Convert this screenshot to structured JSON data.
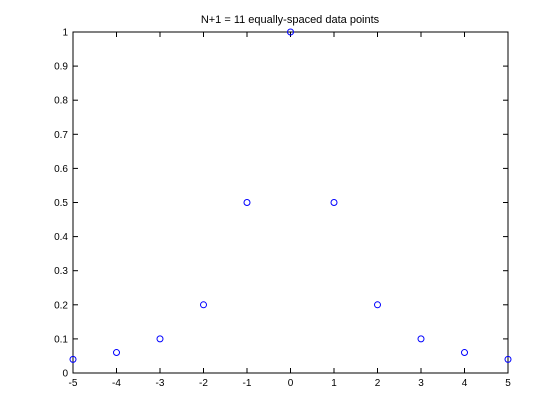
{
  "chart_data": {
    "type": "scatter",
    "title": "N+1 = 11 equally-spaced data points",
    "xlabel": "",
    "ylabel": "",
    "xlim": [
      -5,
      5
    ],
    "ylim": [
      0,
      1
    ],
    "xticks": [
      -5,
      -4,
      -3,
      -2,
      -1,
      0,
      1,
      2,
      3,
      4,
      5
    ],
    "xtick_labels": [
      "-5",
      "-4",
      "-3",
      "-2",
      "-1",
      "0",
      "1",
      "2",
      "3",
      "4",
      "5"
    ],
    "yticks": [
      0,
      0.1,
      0.2,
      0.3,
      0.4,
      0.5,
      0.6,
      0.7,
      0.8,
      0.9,
      1
    ],
    "ytick_labels": [
      "0",
      "0.1",
      "0.2",
      "0.3",
      "0.4",
      "0.5",
      "0.6",
      "0.7",
      "0.8",
      "0.9",
      "1"
    ],
    "grid": false,
    "marker": "circle-open",
    "series": [
      {
        "x": [
          -5,
          -4,
          -3,
          -2,
          -1,
          0,
          1,
          2,
          3,
          4,
          5
        ],
        "y": [
          0.04,
          0.06,
          0.1,
          0.2,
          0.5,
          1,
          0.5,
          0.2,
          0.1,
          0.06,
          0.04
        ],
        "color": "#0000ff"
      }
    ]
  }
}
